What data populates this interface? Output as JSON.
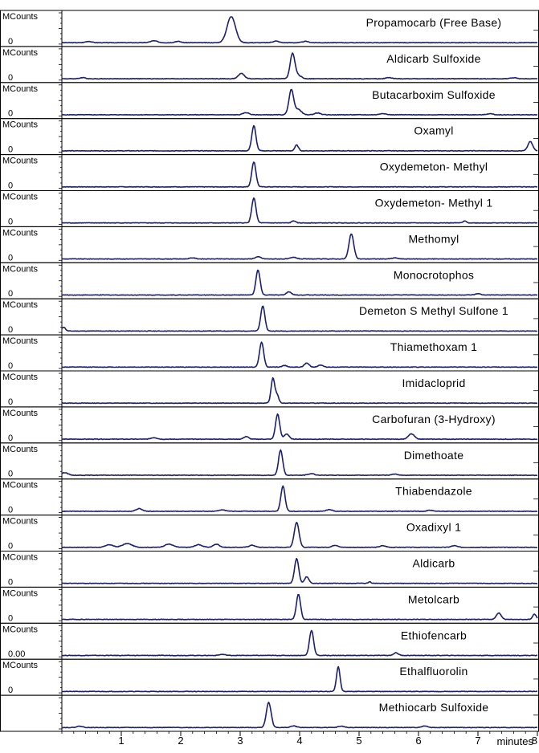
{
  "chart_data": {
    "type": "line",
    "xlabel": "minutes",
    "xlim": [
      0,
      8
    ],
    "x_ticks": [
      "1",
      "2",
      "3",
      "4",
      "5",
      "6",
      "7",
      "8"
    ],
    "y_unit_label": "MCounts",
    "line_color": "#1a1f6e",
    "panels": [
      {
        "name": "Propamocarb (Free Base)",
        "unit": "MCounts",
        "zero_label": "0",
        "peaks": [
          [
            2.85,
            1.0,
            0.07
          ],
          [
            0.45,
            0.05,
            0.05
          ],
          [
            1.55,
            0.07,
            0.06
          ],
          [
            1.95,
            0.05,
            0.05
          ],
          [
            3.6,
            0.06,
            0.05
          ],
          [
            4.1,
            0.05,
            0.05
          ]
        ]
      },
      {
        "name": "Aldicarb Sulfoxide",
        "unit": "MCounts",
        "zero_label": "0",
        "peaks": [
          [
            3.88,
            0.95,
            0.04
          ],
          [
            3.02,
            0.2,
            0.05
          ],
          [
            3.98,
            0.12,
            0.05
          ],
          [
            0.35,
            0.04,
            0.05
          ],
          [
            5.5,
            0.04,
            0.05
          ],
          [
            7.6,
            0.04,
            0.05
          ]
        ]
      },
      {
        "name": "Butacarboxim Sulfoxide",
        "unit": "MCounts",
        "zero_label": "0",
        "peaks": [
          [
            3.86,
            0.95,
            0.04
          ],
          [
            3.98,
            0.2,
            0.05
          ],
          [
            3.1,
            0.08,
            0.05
          ],
          [
            4.3,
            0.07,
            0.05
          ],
          [
            5.4,
            0.05,
            0.05
          ],
          [
            7.2,
            0.04,
            0.05
          ]
        ]
      },
      {
        "name": "Oxamyl",
        "unit": "MCounts",
        "zero_label": "0",
        "peaks": [
          [
            3.23,
            0.95,
            0.035
          ],
          [
            3.95,
            0.22,
            0.03
          ],
          [
            7.88,
            0.35,
            0.04
          ]
        ]
      },
      {
        "name": "Oxydemeton- Methyl",
        "unit": "MCounts",
        "zero_label": "0",
        "peaks": [
          [
            3.23,
            0.95,
            0.035
          ]
        ]
      },
      {
        "name": "Oxydemeton- Methyl 1",
        "unit": "MCounts",
        "zero_label": "0",
        "peaks": [
          [
            3.23,
            0.95,
            0.035
          ],
          [
            3.9,
            0.08,
            0.03
          ],
          [
            6.78,
            0.07,
            0.03
          ]
        ]
      },
      {
        "name": "Methomyl",
        "unit": "MCounts",
        "zero_label": "0",
        "peaks": [
          [
            4.87,
            0.95,
            0.04
          ],
          [
            3.3,
            0.08,
            0.05
          ],
          [
            2.2,
            0.04,
            0.05
          ],
          [
            3.9,
            0.06,
            0.05
          ],
          [
            5.6,
            0.04,
            0.05
          ]
        ]
      },
      {
        "name": "Monocrotophos",
        "unit": "MCounts",
        "zero_label": "0",
        "peaks": [
          [
            3.3,
            0.95,
            0.035
          ],
          [
            3.82,
            0.12,
            0.04
          ],
          [
            7.0,
            0.05,
            0.04
          ]
        ]
      },
      {
        "name": "Demeton S Methyl Sulfone 1",
        "unit": "MCounts",
        "zero_label": "0",
        "peaks": [
          [
            3.38,
            0.95,
            0.035
          ],
          [
            0.03,
            0.15,
            0.03
          ]
        ]
      },
      {
        "name": "Thiamethoxam 1",
        "unit": "MCounts",
        "zero_label": "0",
        "peaks": [
          [
            3.36,
            0.95,
            0.035
          ],
          [
            4.12,
            0.15,
            0.04
          ],
          [
            4.35,
            0.08,
            0.04
          ],
          [
            3.75,
            0.06,
            0.04
          ]
        ]
      },
      {
        "name": "Imidacloprid",
        "unit": "MCounts",
        "zero_label": "0",
        "peaks": [
          [
            3.55,
            0.95,
            0.03
          ],
          [
            3.62,
            0.3,
            0.03
          ]
        ]
      },
      {
        "name": "Carbofuran (3-Hydroxy)",
        "unit": "MCounts",
        "zero_label": "0",
        "peaks": [
          [
            3.63,
            0.95,
            0.035
          ],
          [
            3.78,
            0.2,
            0.04
          ],
          [
            5.88,
            0.2,
            0.05
          ],
          [
            3.1,
            0.1,
            0.04
          ],
          [
            1.55,
            0.06,
            0.05
          ]
        ]
      },
      {
        "name": "Dimethoate",
        "unit": "MCounts",
        "zero_label": "0",
        "peaks": [
          [
            3.68,
            0.95,
            0.035
          ],
          [
            0.05,
            0.1,
            0.05
          ],
          [
            4.2,
            0.06,
            0.05
          ],
          [
            5.6,
            0.04,
            0.05
          ]
        ]
      },
      {
        "name": "Thiabendazole",
        "unit": "MCounts",
        "zero_label": "0",
        "peaks": [
          [
            3.72,
            0.95,
            0.035
          ],
          [
            1.3,
            0.1,
            0.05
          ],
          [
            2.7,
            0.06,
            0.05
          ],
          [
            4.5,
            0.06,
            0.05
          ],
          [
            6.2,
            0.04,
            0.05
          ]
        ]
      },
      {
        "name": "Oxadixyl 1",
        "unit": "MCounts",
        "zero_label": "0",
        "peaks": [
          [
            3.95,
            0.95,
            0.04
          ],
          [
            0.8,
            0.1,
            0.06
          ],
          [
            1.1,
            0.14,
            0.08
          ],
          [
            1.8,
            0.12,
            0.07
          ],
          [
            2.3,
            0.1,
            0.06
          ],
          [
            2.6,
            0.12,
            0.05
          ],
          [
            3.2,
            0.08,
            0.05
          ],
          [
            4.6,
            0.08,
            0.05
          ],
          [
            5.4,
            0.06,
            0.05
          ],
          [
            6.6,
            0.06,
            0.05
          ]
        ]
      },
      {
        "name": "Aldicarb",
        "unit": "MCounts",
        "zero_label": "0",
        "peaks": [
          [
            3.95,
            0.95,
            0.035
          ],
          [
            4.12,
            0.25,
            0.035
          ],
          [
            5.18,
            0.06,
            0.02
          ]
        ]
      },
      {
        "name": "Metolcarb",
        "unit": "MCounts",
        "zero_label": "0",
        "peaks": [
          [
            3.98,
            0.95,
            0.035
          ],
          [
            7.35,
            0.25,
            0.04
          ],
          [
            7.95,
            0.2,
            0.03
          ]
        ]
      },
      {
        "name": "Ethiofencarb",
        "unit": "MCounts",
        "zero_label": "0.00",
        "peaks": [
          [
            4.2,
            0.95,
            0.035
          ],
          [
            5.62,
            0.1,
            0.04
          ],
          [
            2.7,
            0.04,
            0.05
          ]
        ]
      },
      {
        "name": "Ethalfluorolin",
        "unit": "MCounts",
        "zero_label": "0",
        "peaks": [
          [
            4.65,
            0.95,
            0.03
          ]
        ]
      },
      {
        "name": "Methiocarb Sulfoxide",
        "unit": "",
        "zero_label": "",
        "peaks": [
          [
            3.48,
            0.95,
            0.04
          ],
          [
            0.3,
            0.05,
            0.05
          ],
          [
            3.9,
            0.06,
            0.05
          ],
          [
            4.7,
            0.05,
            0.05
          ],
          [
            6.1,
            0.06,
            0.05
          ]
        ]
      }
    ]
  }
}
